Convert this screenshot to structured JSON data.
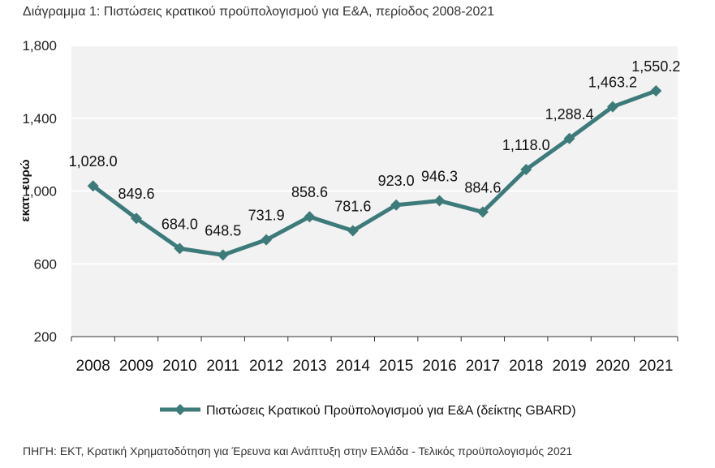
{
  "title": "Διάγραμμα 1: Πιστώσεις κρατικού προϋπολογισμού για Ε&Α, περίοδος 2008-2021",
  "source": "ΠΗΓΗ: ΕΚΤ, Κρατική Χρηματοδότηση για Έρευνα και Ανάπτυξη στην Ελλάδα - Τελικός προϋπολογισμός 2021",
  "chart_data": {
    "type": "line",
    "categories": [
      "2008",
      "2009",
      "2010",
      "2011",
      "2012",
      "2013",
      "2014",
      "2015",
      "2016",
      "2017",
      "2018",
      "2019",
      "2020",
      "2021"
    ],
    "series": [
      {
        "name": "Πιστώσεις Κρατικού Προϋπολογισμού για Ε&Α (δείκτης GBARD)",
        "values": [
          1028.0,
          849.6,
          684.0,
          648.5,
          731.9,
          858.6,
          781.6,
          923.0,
          946.3,
          884.6,
          1118.0,
          1288.4,
          1463.2,
          1550.2
        ],
        "labels": [
          "1,028.0",
          "849.6",
          "684.0",
          "648.5",
          "731.9",
          "858.6",
          "781.6",
          "923.0",
          "946.3",
          "884.6",
          "1,118.0",
          "1,288.4",
          "1,463.2",
          "1,550.2"
        ],
        "color": "#3d7a7a",
        "marker": "diamond"
      }
    ],
    "ylabel": "εκατ. ευρώ",
    "ylim": [
      200,
      1800
    ],
    "yticks": [
      "200",
      "600",
      "1,000",
      "1,400",
      "1,800"
    ],
    "grid": true,
    "legend": "bottom"
  }
}
